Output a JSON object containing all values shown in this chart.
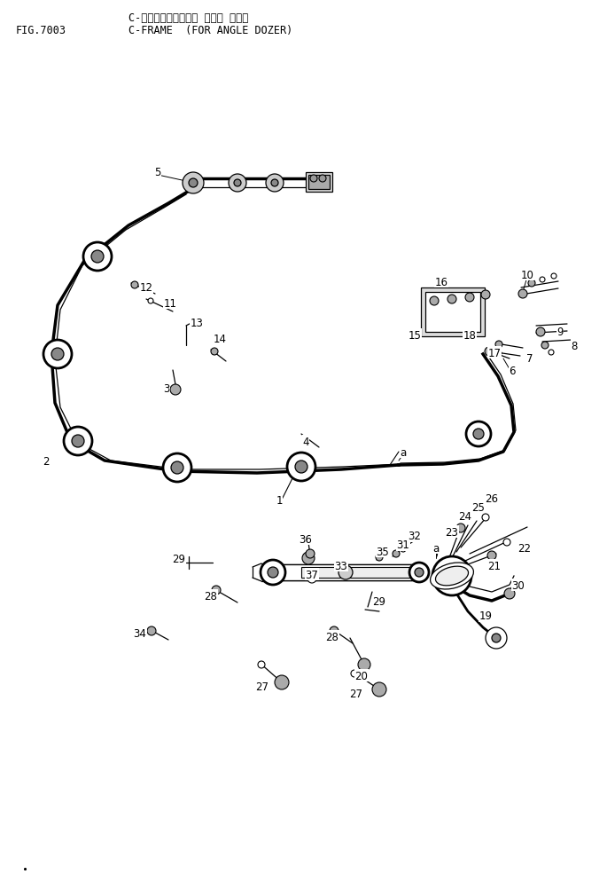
{
  "title_japanese": "C-フレーム（アングル ドーザ ヨウ）",
  "title_english": "C-FRAME  (FOR ANGLE DOZER)",
  "fig_number": "FIG.7003",
  "bg_color": "#ffffff",
  "line_color": "#000000",
  "text_color": "#000000"
}
